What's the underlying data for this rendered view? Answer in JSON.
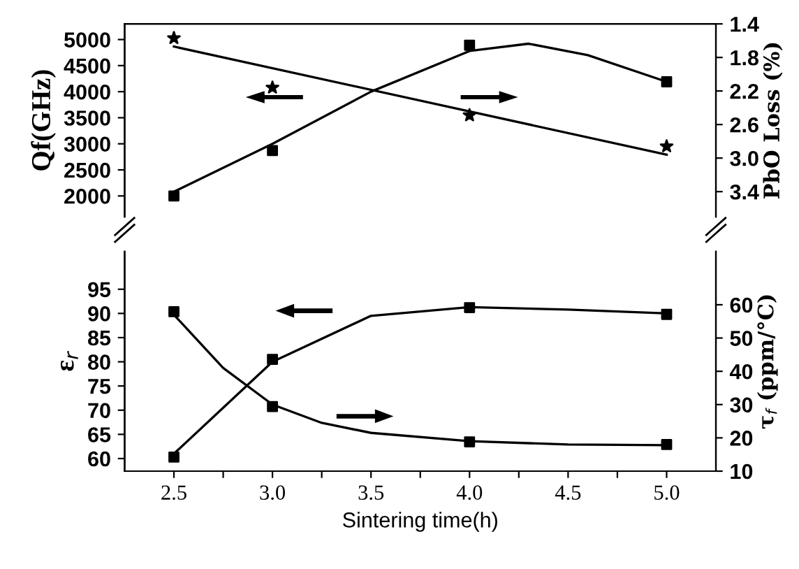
{
  "chart_data": [
    {
      "type": "line",
      "ylabel": "Qf(GHz)",
      "y2label": "PbO Loss (%)",
      "xlim": [
        2.25,
        5.25
      ],
      "ylim": [
        1600,
        5300
      ],
      "yticks": [
        2000,
        2500,
        3000,
        3500,
        4000,
        4500,
        5000
      ],
      "y2lim": [
        3.7,
        1.4
      ],
      "y2ticks": [
        1.4,
        1.8,
        2.2,
        2.6,
        {
          "value": 3,
          "label": "3.0"
        },
        3.4
      ],
      "tick_labels": "y",
      "grid": false,
      "legend": false,
      "series": [
        {
          "type": "scatter",
          "marker": "square",
          "color": "#000000",
          "x": [
            2.5,
            3.0,
            4.0,
            5.0
          ],
          "values": [
            2000,
            2870,
            4890,
            4190
          ]
        },
        {
          "color": "#000000",
          "x": [
            2.5,
            3.0,
            3.5,
            4.0,
            4.3,
            4.6,
            5.0
          ],
          "values": [
            2080,
            3000,
            4000,
            4780,
            4920,
            4700,
            4190
          ]
        },
        {
          "type": "scatter",
          "marker": "star",
          "axis": "y2",
          "color": "#000000",
          "x": [
            2.5,
            3.0,
            4.0,
            5.0
          ],
          "values": [
            1.57,
            2.16,
            2.49,
            2.86
          ]
        },
        {
          "axis": "y2",
          "color": "#000000",
          "x": [
            2.5,
            5.0
          ],
          "values": [
            1.67,
            2.96
          ]
        }
      ]
    },
    {
      "type": "line",
      "xlabel": "Sintering time(h)",
      "ylabel": "ε$_{r}$",
      "y2label": "τ$_{f}$ (ppm/°C)",
      "xlim": [
        2.25,
        5.25
      ],
      "xticks": [
        2.5,
        {
          "value": 2.75,
          "label": null
        },
        {
          "value": 3,
          "label": "3.0"
        },
        {
          "value": 3.25,
          "label": null
        },
        3.5,
        {
          "value": 3.75,
          "label": null
        },
        {
          "value": 4,
          "label": "4.0"
        },
        {
          "value": 4.25,
          "label": null
        },
        4.5,
        {
          "value": 4.75,
          "label": null
        },
        {
          "value": 5,
          "label": "5.0"
        }
      ],
      "ylim": [
        57.4,
        102.8
      ],
      "yticks": [
        60,
        65,
        70,
        75,
        80,
        85,
        90,
        95
      ],
      "y2lim": [
        10,
        76
      ],
      "y2ticks": [
        10,
        20,
        30,
        40,
        50,
        60
      ],
      "grid": false,
      "legend": false,
      "series": [
        {
          "type": "scatter",
          "marker": "square",
          "color": "#000000",
          "x": [
            2.5,
            3.0,
            4.0,
            5.0
          ],
          "values": [
            60.3,
            80.5,
            91.2,
            89.8
          ]
        },
        {
          "color": "#000000",
          "x": [
            2.5,
            3.0,
            3.5,
            4.0,
            4.5,
            5.0
          ],
          "values": [
            61,
            80,
            89.5,
            91.3,
            90.8,
            90
          ]
        },
        {
          "type": "scatter",
          "marker": "square",
          "axis": "y2",
          "color": "#000000",
          "x": [
            2.5,
            3.0,
            4.0,
            5.0
          ],
          "values": [
            57.9,
            29.4,
            18.8,
            18.0
          ]
        },
        {
          "axis": "y2",
          "color": "#000000",
          "x": [
            2.5,
            2.75,
            3.0,
            3.25,
            3.5,
            4.0,
            4.5,
            5.0
          ],
          "values": [
            57,
            41,
            30,
            24.5,
            21.5,
            19,
            18,
            17.8
          ]
        }
      ]
    }
  ]
}
